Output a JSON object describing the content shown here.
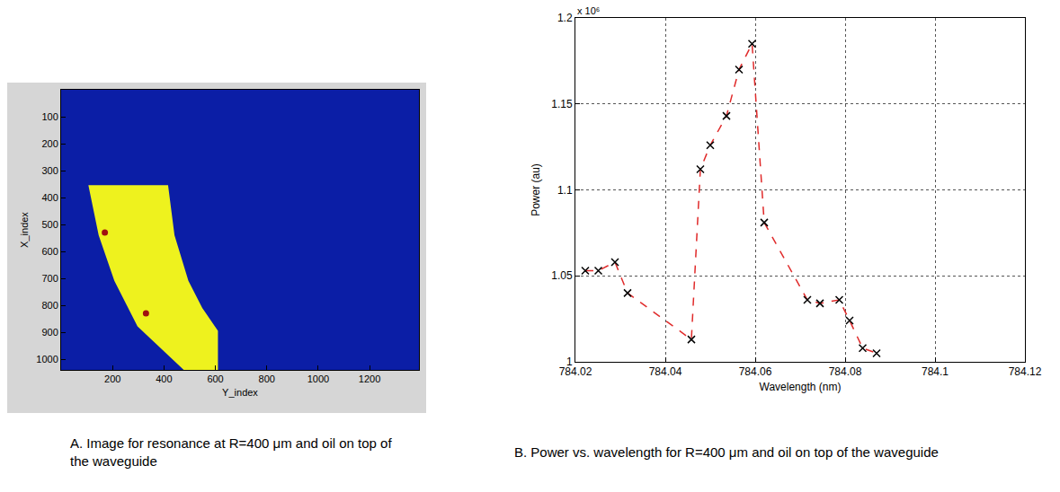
{
  "chart_data": [
    {
      "type": "image",
      "caption": "A.  Image for resonance at R=400 μm and oil on top of the waveguide",
      "xlabel": "Y_index",
      "ylabel": "X_index",
      "xlim": [
        0,
        1392
      ],
      "ylim": [
        1040,
        0
      ],
      "xticks": [
        200,
        400,
        600,
        800,
        1000,
        1200
      ],
      "yticks": [
        100,
        200,
        300,
        400,
        500,
        600,
        700,
        800,
        900,
        1000
      ],
      "color": "#0b1ea6",
      "region": {
        "color": "#eef21e",
        "x": [
          106,
          146,
          207,
          297,
          477,
          610,
          610,
          549,
          495,
          441,
          416
        ],
        "y": [
          354,
          540,
          709,
          878,
          1040,
          1040,
          895,
          810,
          709,
          540,
          354
        ]
      },
      "spots": {
        "color": "#a01010",
        "x": [
          170,
          330
        ],
        "y": [
          530,
          830
        ]
      }
    },
    {
      "type": "line",
      "caption": "B. Power vs. wavelength for R=400 μm and oil on top of the waveguide",
      "xlabel": "Wavelength (nm)",
      "ylabel": "Power (au)",
      "axis_multiplier": "x 10⁶",
      "x": [
        784.0222,
        784.0251,
        784.0288,
        784.0316,
        784.0458,
        784.0478,
        784.05,
        784.0536,
        784.0564,
        784.0593,
        784.062,
        784.0716,
        784.0744,
        784.0787,
        784.081,
        784.0839,
        784.087
      ],
      "values": [
        1.053,
        1.053,
        1.058,
        1.04,
        1.013,
        1.112,
        1.126,
        1.143,
        1.17,
        1.185,
        1.081,
        1.036,
        1.034,
        1.036,
        1.024,
        1.008,
        1.005
      ],
      "xlim": [
        784.02,
        784.12
      ],
      "ylim": [
        1,
        1.2
      ],
      "xticks": [
        784.02,
        784.04,
        784.06,
        784.08,
        784.1,
        784.12
      ],
      "yticks": [
        1,
        1.05,
        1.1,
        1.15,
        1.2
      ],
      "grid": true,
      "color": "#e02a2a",
      "marker": "x",
      "line_style": "dash"
    }
  ]
}
